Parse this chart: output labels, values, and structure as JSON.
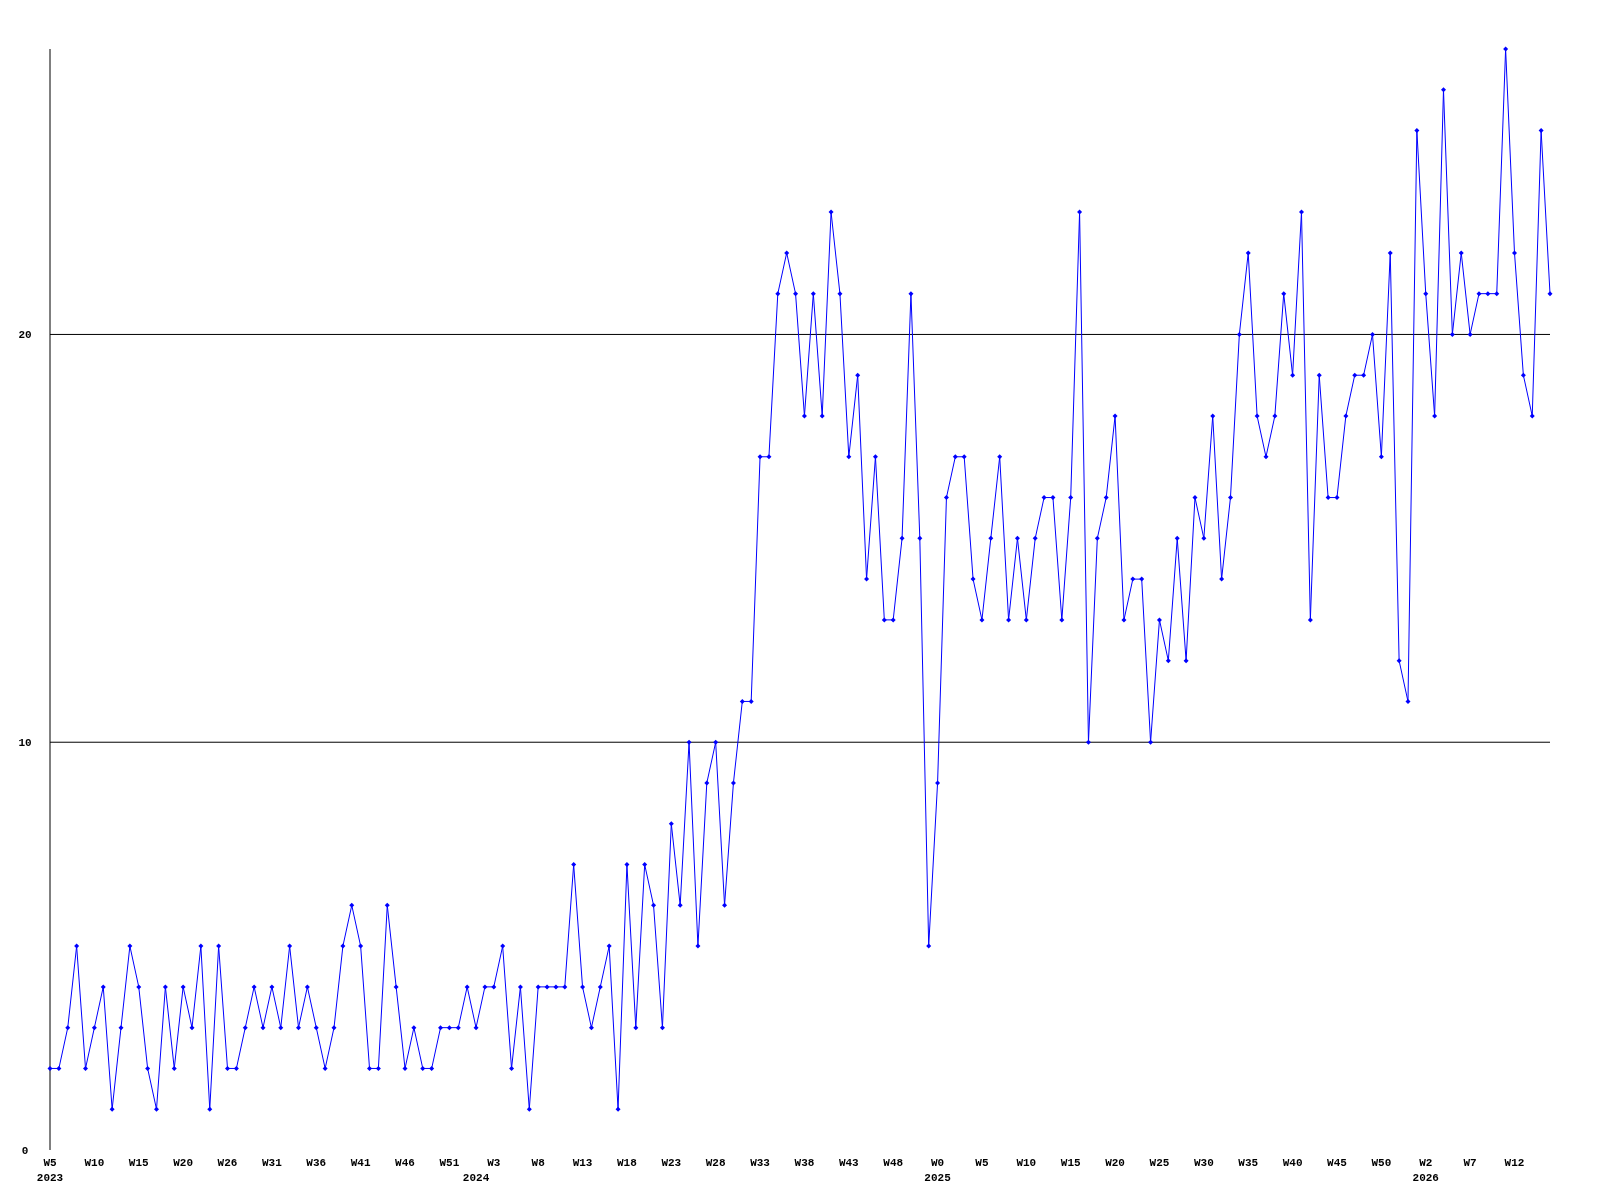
{
  "chart_data": {
    "type": "line",
    "categories": [
      "W5\n2023",
      null,
      null,
      null,
      null,
      "W10",
      null,
      null,
      null,
      null,
      "W15",
      null,
      null,
      null,
      null,
      "W20",
      null,
      null,
      null,
      null,
      "W26",
      null,
      null,
      null,
      null,
      "W31",
      null,
      null,
      null,
      null,
      "W36",
      null,
      null,
      null,
      null,
      "W41",
      null,
      null,
      null,
      null,
      "W46",
      null,
      null,
      null,
      null,
      "W51",
      null,
      null,
      "\n2024",
      null,
      "W3",
      null,
      null,
      null,
      null,
      "W8",
      null,
      null,
      null,
      null,
      "W13",
      null,
      null,
      null,
      null,
      "W18",
      null,
      null,
      null,
      null,
      "W23",
      null,
      null,
      null,
      null,
      "W28",
      null,
      null,
      null,
      null,
      "W33",
      null,
      null,
      null,
      null,
      "W38",
      null,
      null,
      null,
      null,
      "W43",
      null,
      null,
      null,
      null,
      "W48",
      null,
      null,
      null,
      null,
      "W0\n2025",
      null,
      null,
      null,
      null,
      "W5",
      null,
      null,
      null,
      null,
      "W10",
      null,
      null,
      null,
      null,
      "W15",
      null,
      null,
      null,
      null,
      "W20",
      null,
      null,
      null,
      null,
      "W25",
      null,
      null,
      null,
      null,
      "W30",
      null,
      null,
      null,
      null,
      "W35",
      null,
      null,
      null,
      null,
      "W40",
      null,
      null,
      null,
      null,
      "W45",
      null,
      null,
      null,
      null,
      "W50",
      null,
      null,
      null,
      null,
      "W2\n2026",
      null,
      null,
      null,
      null,
      "W7",
      null,
      null,
      null,
      null,
      "W12",
      null,
      null,
      null,
      null
    ],
    "series": [
      {
        "color": "#0000ff",
        "values": [
          2,
          2,
          3,
          5,
          2,
          3,
          4,
          1,
          3,
          5,
          4,
          2,
          1,
          4,
          2,
          4,
          3,
          5,
          1,
          5,
          2,
          2,
          3,
          4,
          3,
          4,
          3,
          5,
          3,
          4,
          3,
          2,
          3,
          5,
          6,
          5,
          2,
          2,
          6,
          4,
          2,
          3,
          2,
          2,
          3,
          3,
          3,
          4,
          3,
          4,
          4,
          5,
          2,
          4,
          1,
          4,
          4,
          4,
          4,
          7,
          4,
          3,
          4,
          5,
          1,
          7,
          3,
          7,
          6,
          3,
          8,
          6,
          10,
          5,
          9,
          10,
          6,
          9,
          11,
          11,
          17,
          17,
          21,
          22,
          21,
          18,
          21,
          18,
          23,
          21,
          17,
          19,
          14,
          17,
          13,
          13,
          15,
          21,
          15,
          5,
          9,
          16,
          17,
          17,
          14,
          13,
          15,
          17,
          13,
          15,
          13,
          15,
          16,
          16,
          13,
          16,
          23,
          10,
          15,
          16,
          18,
          13,
          14,
          14,
          10,
          13,
          12,
          15,
          12,
          16,
          15,
          18,
          14,
          16,
          20,
          22,
          18,
          17,
          18,
          21,
          19,
          23,
          13,
          19,
          16,
          16,
          18,
          19,
          19,
          20,
          17,
          22,
          12,
          11,
          25,
          21,
          18,
          26,
          20,
          22,
          20,
          21,
          21,
          21,
          27,
          22,
          19,
          18,
          25,
          21
        ]
      }
    ],
    "ylim": [
      0,
      27
    ],
    "yticks": [
      0,
      10,
      20
    ],
    "grid": "y",
    "marker": "diamond",
    "line_style": "solid"
  }
}
